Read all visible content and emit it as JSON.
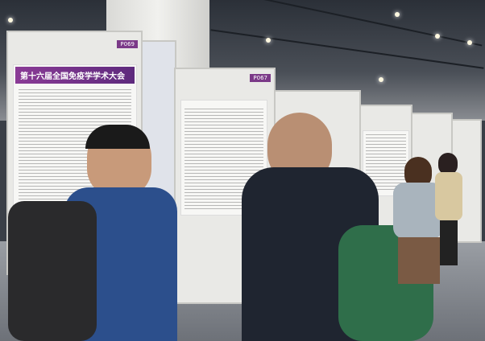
{
  "scene": {
    "poster_labels": [
      "P069",
      "P067"
    ],
    "poster_banner_title": "第十六届全国免疫学学术大会",
    "colors": {
      "banner": "#7b3a88",
      "board": "#e9e9e6",
      "backpack_green": "#2f6e4a",
      "jacket_blue": "#2c4f8c",
      "hoodie": "#1f2530"
    }
  }
}
